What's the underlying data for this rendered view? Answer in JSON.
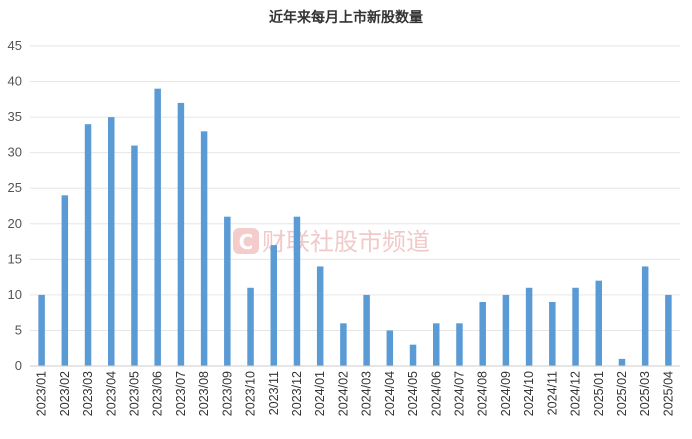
{
  "chart_data": {
    "type": "bar",
    "title": "近年来每月上市新股数量",
    "xlabel": "",
    "ylabel": "",
    "ylim": [
      0,
      45
    ],
    "yticks": [
      0,
      5,
      10,
      15,
      20,
      25,
      30,
      35,
      40,
      45
    ],
    "grid": true,
    "legend": "none",
    "bar_color": "#5b9bd5",
    "categories": [
      "2023/01",
      "2023/02",
      "2023/03",
      "2023/04",
      "2023/05",
      "2023/06",
      "2023/07",
      "2023/08",
      "2023/09",
      "2023/10",
      "2023/11",
      "2023/12",
      "2024/01",
      "2024/02",
      "2024/03",
      "2024/04",
      "2024/05",
      "2024/06",
      "2024/07",
      "2024/08",
      "2024/09",
      "2024/10",
      "2024/11",
      "2024/12",
      "2025/01",
      "2025/02",
      "2025/03",
      "2025/04"
    ],
    "values": [
      10,
      24,
      34,
      35,
      31,
      39,
      37,
      33,
      21,
      11,
      17,
      21,
      14,
      6,
      10,
      5,
      3,
      6,
      6,
      9,
      10,
      11,
      9,
      11,
      12,
      1,
      14,
      10
    ]
  },
  "watermark": {
    "text": "财联社股市频道",
    "color": "#e06060"
  }
}
